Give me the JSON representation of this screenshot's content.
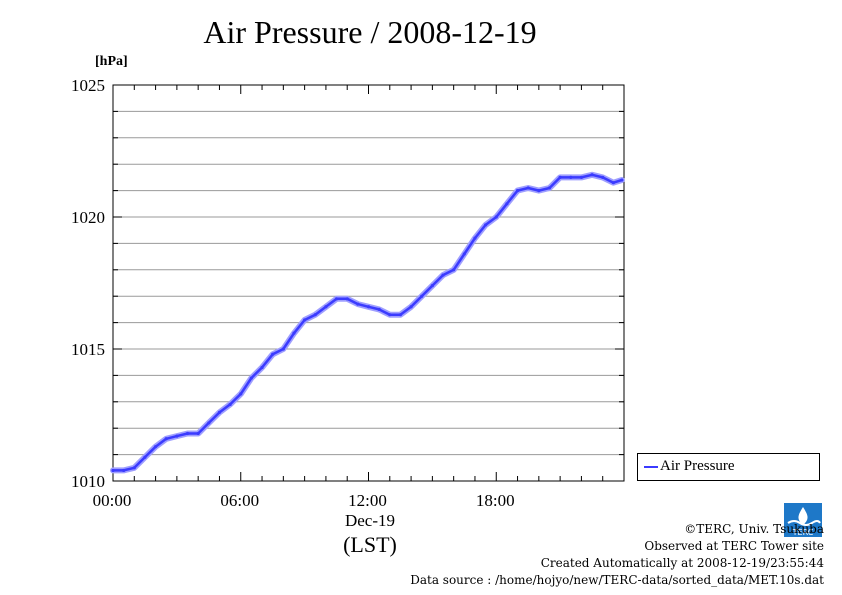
{
  "title": "Air Pressure / 2008-12-19",
  "unit_label": "[hPa]",
  "legend_label": "Air Pressure",
  "x_date_label": "Dec-19",
  "x_tz_label": "(LST)",
  "credits": {
    "copyright": "©TERC, Univ. Tsukuba",
    "site": "Observed at TERC Tower site",
    "created": "Created Automatically at 2008-12-19/23:55:44",
    "source": "Data source : /home/hojyo/new/TERC-data/sorted_data/MET.10s.dat"
  },
  "logo_text": "TERC",
  "colors": {
    "series": "#3b3bff",
    "grid": "#9a9a9a",
    "logo": "#1e78c8"
  },
  "chart_data": {
    "type": "line",
    "title": "Air Pressure / 2008-12-19",
    "ylabel": "[hPa]",
    "xlabel": "Dec-19 (LST)",
    "xlim": [
      0,
      24
    ],
    "ylim": [
      1010,
      1025
    ],
    "x_tick_labels": [
      "00:00",
      "06:00",
      "12:00",
      "18:00"
    ],
    "x_tick_hours": [
      0,
      6,
      12,
      18
    ],
    "y_tick_labels": [
      "1010",
      "1015",
      "1020",
      "1025"
    ],
    "y_tick_values": [
      1010,
      1015,
      1020,
      1025
    ],
    "grid": true,
    "legend_position": "right",
    "series": [
      {
        "name": "Air Pressure",
        "x": [
          0,
          0.5,
          1,
          1.5,
          2,
          2.5,
          3,
          3.5,
          4,
          4.5,
          5,
          5.5,
          6,
          6.5,
          7,
          7.5,
          8,
          8.5,
          9,
          9.5,
          10,
          10.5,
          11,
          11.5,
          12,
          12.5,
          13,
          13.5,
          14,
          14.5,
          15,
          15.5,
          16,
          16.5,
          17,
          17.5,
          18,
          18.5,
          19,
          19.5,
          20,
          20.5,
          21,
          21.5,
          22,
          22.5,
          23,
          23.5,
          23.9
        ],
        "y": [
          1010.4,
          1010.4,
          1010.5,
          1010.9,
          1011.3,
          1011.6,
          1011.7,
          1011.8,
          1011.8,
          1012.2,
          1012.6,
          1012.9,
          1013.3,
          1013.9,
          1014.3,
          1014.8,
          1015.0,
          1015.6,
          1016.1,
          1016.3,
          1016.6,
          1016.9,
          1016.9,
          1016.7,
          1016.6,
          1016.5,
          1016.3,
          1016.3,
          1016.6,
          1017.0,
          1017.4,
          1017.8,
          1018.0,
          1018.6,
          1019.2,
          1019.7,
          1020.0,
          1020.5,
          1021.0,
          1021.1,
          1021.0,
          1021.1,
          1021.5,
          1021.5,
          1021.5,
          1021.6,
          1021.5,
          1021.3,
          1021.4
        ]
      }
    ]
  }
}
